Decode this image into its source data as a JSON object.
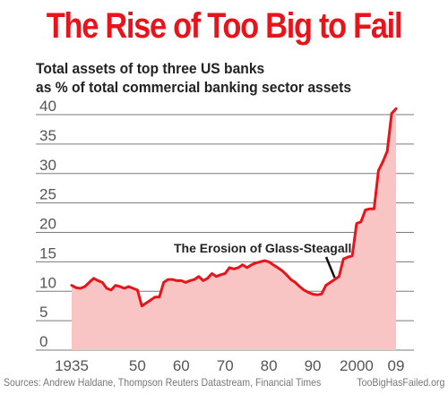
{
  "title": "The Rise of Too Big to Fail",
  "subtitle_lines": [
    "Total assets of top three US banks",
    "as % of total commercial banking sector assets"
  ],
  "footer": {
    "sources": "Sources: Andrew Haldane, Thompson Reuters Datastream, Financial Times",
    "site": "TooBigHasFailed.org"
  },
  "colors": {
    "title": "#e8141b",
    "line": "#e8141b",
    "area": "#f8c4c4",
    "grid": "#7a7a7a",
    "annotation": "#222222"
  },
  "chart_data": {
    "type": "area",
    "title": "The Rise of Too Big to Fail",
    "xlabel": "",
    "ylabel": "",
    "xlim": [
      1935,
      2009
    ],
    "ylim": [
      0,
      40
    ],
    "grid": true,
    "y_ticks": [
      "0",
      "5",
      "10",
      "15",
      "20",
      "25",
      "30",
      "35",
      "40"
    ],
    "y_tick_values": [
      0,
      5,
      10,
      15,
      20,
      25,
      30,
      35,
      40
    ],
    "x_ticks": [
      "1935",
      "50",
      "60",
      "70",
      "80",
      "90",
      "2000",
      "09"
    ],
    "x_tick_values": [
      1935,
      1950,
      1960,
      1970,
      1980,
      1990,
      2000,
      2009
    ],
    "annotation": {
      "text": "The Erosion of Glass-Steagall",
      "x": 1995,
      "y": 12
    },
    "series": [
      {
        "x": [
          1935,
          1936,
          1937,
          1938,
          1939,
          1940,
          1941,
          1942,
          1943,
          1944,
          1945,
          1946,
          1947,
          1948,
          1949,
          1950,
          1951,
          1952,
          1953,
          1954,
          1955,
          1956,
          1957,
          1958,
          1959,
          1960,
          1961,
          1962,
          1963,
          1964,
          1965,
          1966,
          1967,
          1968,
          1969,
          1970,
          1971,
          1972,
          1973,
          1974,
          1975,
          1976,
          1977,
          1978,
          1979,
          1980,
          1981,
          1982,
          1983,
          1984,
          1985,
          1986,
          1987,
          1988,
          1989,
          1990,
          1991,
          1992,
          1993,
          1994,
          1995,
          1996,
          1997,
          1998,
          1999,
          2000,
          2001,
          2002,
          2003,
          2004,
          2005,
          2006,
          2007,
          2008,
          2009
        ],
        "values": [
          11,
          10.6,
          10.5,
          10.8,
          11.5,
          12.2,
          11.8,
          11.5,
          10.5,
          10.2,
          11,
          10.8,
          10.5,
          10.8,
          10.5,
          10.2,
          7.5,
          8,
          8.5,
          9,
          9,
          11.5,
          12,
          12,
          11.8,
          11.8,
          11.5,
          11.8,
          12,
          12.5,
          11.8,
          12.2,
          13,
          12.5,
          12.8,
          13,
          14,
          13.8,
          14,
          14.5,
          14,
          14.5,
          14.8,
          15,
          15.2,
          15,
          14.5,
          14,
          13.5,
          12.8,
          12,
          11.5,
          10.8,
          10.2,
          9.8,
          9.5,
          9.4,
          9.5,
          11,
          11.5,
          12,
          12.5,
          15.5,
          15.8,
          16,
          21.5,
          21.8,
          23.8,
          24,
          24,
          30.5,
          32,
          33.8,
          40.2,
          41
        ]
      }
    ]
  }
}
